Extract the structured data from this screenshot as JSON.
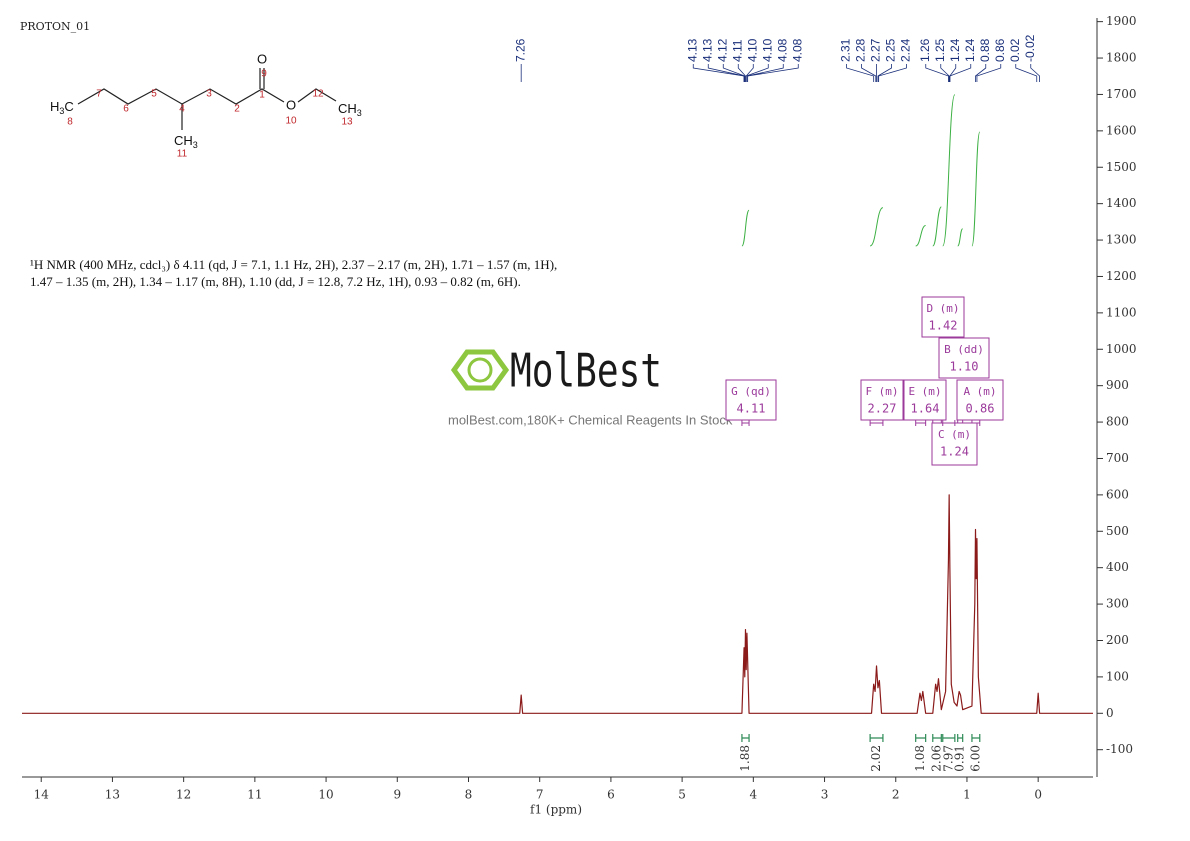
{
  "chart_data": {
    "type": "line",
    "title": "PROTON_01",
    "xlabel": "f1 (ppm)",
    "x": [
      14.27,
      7.28,
      7.26,
      7.24,
      4.16,
      4.13,
      4.12,
      4.11,
      4.1,
      4.09,
      4.06,
      2.34,
      2.31,
      2.29,
      2.27,
      2.25,
      2.23,
      2.2,
      1.7,
      1.66,
      1.64,
      1.62,
      1.58,
      1.48,
      1.44,
      1.42,
      1.4,
      1.36,
      1.3,
      1.26,
      1.25,
      1.24,
      1.22,
      1.18,
      1.14,
      1.11,
      1.09,
      1.06,
      0.93,
      0.89,
      0.88,
      0.87,
      0.86,
      0.84,
      0.8,
      0.02,
      0.0,
      -0.02,
      -0.77
    ],
    "values": [
      0,
      0,
      50,
      0,
      0,
      180,
      100,
      230,
      120,
      220,
      0,
      0,
      80,
      60,
      130,
      70,
      90,
      0,
      0,
      55,
      35,
      60,
      0,
      0,
      80,
      60,
      95,
      10,
      60,
      420,
      600,
      400,
      80,
      30,
      20,
      60,
      50,
      10,
      20,
      300,
      505,
      370,
      480,
      100,
      0,
      0,
      55,
      0,
      0
    ],
    "color": "#8b1a1a",
    "xlim": [
      14.27,
      -0.77
    ],
    "xticks": [
      14,
      13,
      12,
      11,
      10,
      9,
      8,
      7,
      6,
      5,
      4,
      3,
      2,
      1,
      0
    ],
    "ylim": [
      -175,
      1910
    ],
    "yticks": [
      -100,
      0,
      100,
      200,
      300,
      400,
      500,
      600,
      700,
      800,
      900,
      1000,
      1100,
      1200,
      1300,
      1400,
      1500,
      1600,
      1700,
      1800,
      1900
    ],
    "peak_labels": [
      [
        7.26
      ],
      [
        4.13,
        4.13,
        4.12,
        4.11,
        {
          "value": 4.1,
          "label": "4.10"
        },
        {
          "value": 4.1,
          "label": "4.10"
        },
        {
          "value": 4.08,
          "label": "4.08"
        },
        {
          "value": 4.08,
          "label": "4.08"
        }
      ],
      [
        2.31,
        2.28,
        2.27,
        2.25,
        2.24
      ],
      [
        1.26,
        1.25,
        1.24,
        1.24,
        0.88,
        0.86,
        0.02,
        -0.02
      ]
    ],
    "integrals": [
      {
        "from": 4.16,
        "to": 4.06,
        "value": 1.88
      },
      {
        "from": 2.36,
        "to": 2.18,
        "value": 2.02
      },
      {
        "from": 1.72,
        "to": 1.58,
        "value": 1.08
      },
      {
        "from": 1.48,
        "to": 1.36,
        "value": 2.06
      },
      {
        "from": 1.34,
        "to": 1.17,
        "value": 7.97
      },
      {
        "from": 1.13,
        "to": 1.06,
        "value": 0.91
      },
      {
        "from": 0.93,
        "to": 0.82,
        "value": {
          "value": 6,
          "label": "6.00"
        }
      }
    ],
    "multiplets": [
      {
        "label": "G (qd)",
        "shift": 4.11,
        "from": 4.16,
        "to": 4.06
      },
      {
        "label": "F (m)",
        "shift": 2.27,
        "from": 2.36,
        "to": 2.18
      },
      {
        "label": "E (m)",
        "shift": 1.64,
        "from": 1.72,
        "to": 1.58
      },
      {
        "label": "D (m)",
        "shift": 1.42,
        "from": 1.48,
        "to": 1.36
      },
      {
        "label": "B (dd)",
        "shift": {
          "value": 1.1,
          "label": "1.10"
        },
        "from": 1.13,
        "to": 1.06
      },
      {
        "label": "A (m)",
        "shift": 0.86,
        "from": 0.93,
        "to": 0.82
      },
      {
        "label": "C (m)",
        "shift": 1.24,
        "from": 1.34,
        "to": 1.17
      }
    ]
  },
  "description": {
    "lines": [
      "¹H NMR (400 MHz, cdcl₃) δ 4.11 (qd, J = 7.1, 1.1 Hz, 2H), 2.37 – 2.17 (m, 2H), 1.71 – 1.57 (m, 1H),",
      "1.47 – 1.35 (m, 2H), 1.34 – 1.17 (m, 8H), 1.10 (dd, J = 12.8, 7.2 Hz, 1H), 0.93 – 0.82 (m, 6H)."
    ]
  },
  "structure": {
    "labels": [
      "O",
      "O",
      "H",
      "3",
      "C",
      "CH",
      "3",
      "CH",
      "3"
    ],
    "numbers": [
      "9",
      "1",
      "2",
      "3",
      "4",
      "5",
      "6",
      "7",
      "8",
      "10",
      "11",
      "12",
      "13"
    ]
  },
  "watermark": {
    "brand": "MolBest",
    "tagline": "molBest.com,180K+ Chemical Reagents In Stock"
  }
}
